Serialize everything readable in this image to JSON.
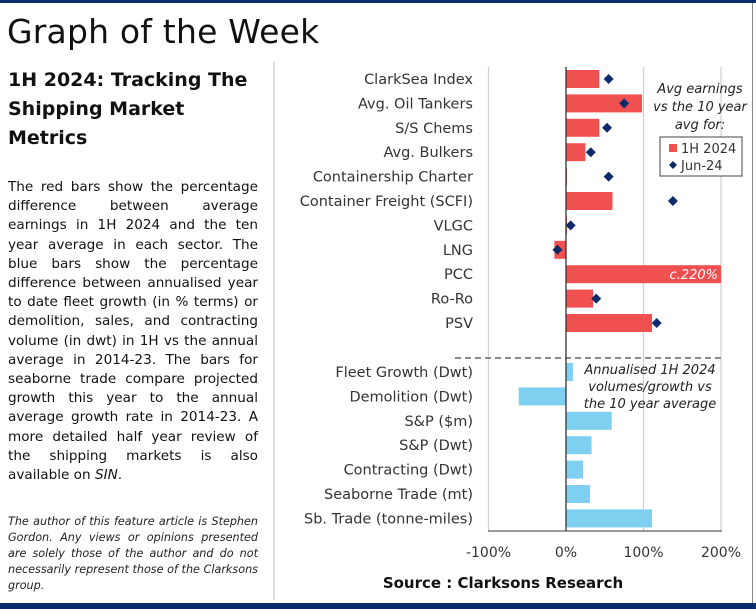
{
  "page": {
    "title": "Graph of the Week",
    "heading": "1H 2024: Tracking The Shipping Market Metrics",
    "paragraph_main": "The red bars show the percentage difference between average earnings in 1H 2024 and the ten year average in each sector. The blue bars show the percentage difference between annualised year to date fleet growth (in % terms) or demolition, sales, and contracting volume (in dwt) in 1H vs the annual average in 2014-23. The bars for seaborne trade compare projected growth this year to the annual average growth rate in 2014-23. A more detailed half year review of the shipping markets is also available on ",
    "paragraph_link": "SIN",
    "paragraph_end": ".",
    "note": "The author of this feature article is Stephen Gordon. Any views or opinions presented are solely those of the author and do not necessarily represent those of the Clarksons group."
  },
  "chart_data": {
    "type": "bar",
    "orientation": "horizontal",
    "xlim": [
      -100,
      200
    ],
    "x_ticks": [
      "-100%",
      "0%",
      "100%",
      "200%"
    ],
    "grid": true,
    "source": "Source : Clarksons Research",
    "legend_title": [
      "Avg earnings",
      "vs the 10 year",
      "avg for:"
    ],
    "legend_placement": "top-right",
    "colors": {
      "red": "#f05050",
      "blue": "#7fd0f0",
      "diamond": "#0d2a6b"
    },
    "earnings": {
      "categories": [
        "ClarkSea Index",
        "Avg. Oil Tankers",
        "S/S Chems",
        "Avg. Bulkers",
        "Containership Charter",
        "Container Freight (SCFI)",
        "VLGC",
        "LNG",
        "PCC",
        "Ro-Ro",
        "PSV"
      ],
      "series": [
        {
          "name": "1H 2024",
          "type": "bar",
          "values": [
            43,
            98,
            43,
            25,
            1,
            60,
            0,
            -15,
            220,
            35,
            111
          ]
        },
        {
          "name": "Jun-24",
          "type": "marker",
          "values": [
            55,
            75,
            53,
            32,
            55,
            138,
            6,
            -11,
            null,
            39,
            117
          ]
        }
      ],
      "annotations": [
        {
          "category": "PCC",
          "text": "c.220%"
        }
      ]
    },
    "activity": {
      "note": [
        "Annualised 1H 2024",
        "volumes/growth vs",
        "the 10 year average"
      ],
      "categories": [
        "Fleet Growth (Dwt)",
        "Demolition (Dwt)",
        "S&P ($m)",
        "S&P (Dwt)",
        "Contracting (Dwt)",
        "Seaborne Trade (mt)",
        "Sb. Trade (tonne-miles)"
      ],
      "values": [
        9,
        -61,
        59,
        33,
        22,
        31,
        111
      ]
    }
  }
}
